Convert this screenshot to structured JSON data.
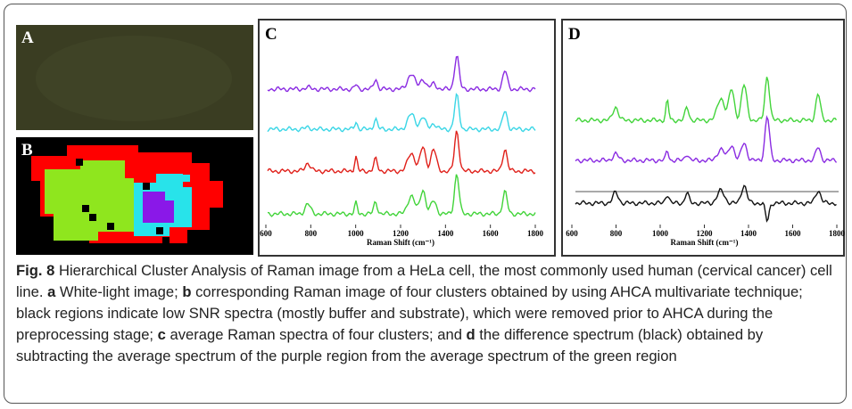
{
  "panels": {
    "a": {
      "label": "A"
    },
    "b": {
      "label": "B"
    },
    "c": {
      "label": "C",
      "x_ticks": [
        "600",
        "800",
        "1000",
        "1200",
        "1400",
        "1600",
        "1800"
      ],
      "x_title": "Raman Shift (cm⁻¹)"
    },
    "d": {
      "label": "D",
      "x_ticks": [
        "600",
        "800",
        "1000",
        "1200",
        "1400",
        "1600",
        "1800"
      ],
      "x_title": "Raman Shift (cm⁻¹)"
    }
  },
  "caption": {
    "runs": [
      {
        "text": "Fig. 8",
        "bold": true
      },
      {
        "text": " Hierarchical Cluster Analysis of Raman image from a HeLa cell, the most commonly used human (cervical cancer) cell line. ",
        "bold": false
      },
      {
        "text": "a",
        "bold": true
      },
      {
        "text": " White-light image; ",
        "bold": false
      },
      {
        "text": "b",
        "bold": true
      },
      {
        "text": " corresponding Raman image of four clusters obtained by using AHCA multivariate technique; black regions indicate low SNR spectra (mostly buffer and substrate), which were removed prior to AHCA during the preprocessing stage; ",
        "bold": false
      },
      {
        "text": "c",
        "bold": true
      },
      {
        "text": " average Raman spectra of four clusters; and ",
        "bold": false
      },
      {
        "text": "d",
        "bold": true
      },
      {
        "text": " the difference spectrum (black) obtained by subtracting the average spectrum of the purple region from the average spectrum of the green region",
        "bold": false
      }
    ]
  }
}
